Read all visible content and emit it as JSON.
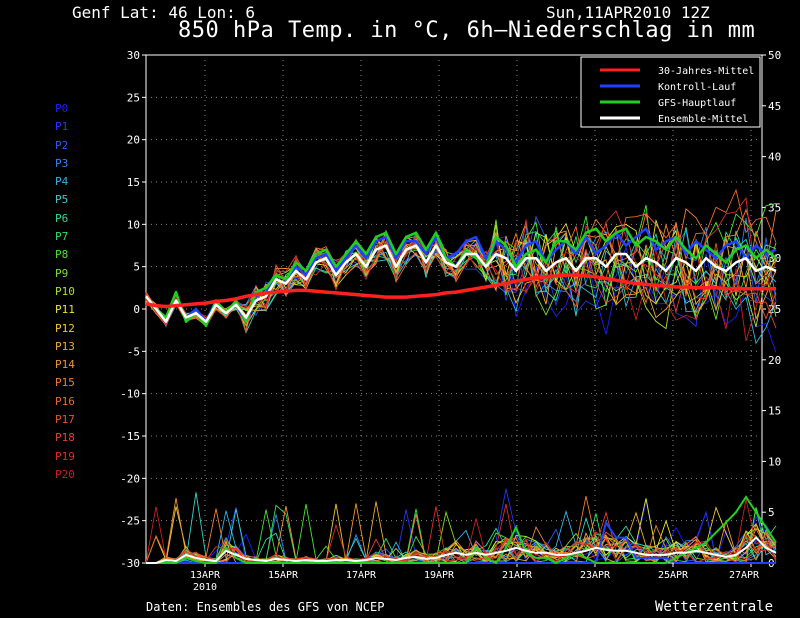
{
  "header": {
    "location": "Genf  Lat: 46 Lon: 6",
    "datetime": "Sun,11APR2010 12Z",
    "title": "850 hPa Temp. in °C, 6h–Niederschlag in mm"
  },
  "footer": {
    "credit": "Daten: Ensembles des GFS von NCEP",
    "brand": "Wetterzentrale"
  },
  "members": [
    {
      "label": "P0",
      "color": "#1c1cff"
    },
    {
      "label": "P1",
      "color": "#2638f0"
    },
    {
      "label": "P2",
      "color": "#2a5cf2"
    },
    {
      "label": "P3",
      "color": "#2f86f0"
    },
    {
      "label": "P4",
      "color": "#32b4e8"
    },
    {
      "label": "P5",
      "color": "#34d2c8"
    },
    {
      "label": "P6",
      "color": "#30d89a"
    },
    {
      "label": "P7",
      "color": "#2ede62"
    },
    {
      "label": "P8",
      "color": "#48e038"
    },
    {
      "label": "P9",
      "color": "#7ae02a"
    },
    {
      "label": "P10",
      "color": "#aee02a"
    },
    {
      "label": "P11",
      "color": "#e6e62a"
    },
    {
      "label": "P12",
      "color": "#f0c832"
    },
    {
      "label": "P13",
      "color": "#f0aa32"
    },
    {
      "label": "P14",
      "color": "#f29432"
    },
    {
      "label": "P15",
      "color": "#f27e30"
    },
    {
      "label": "P16",
      "color": "#f0662e"
    },
    {
      "label": "P17",
      "color": "#e8542c"
    },
    {
      "label": "P18",
      "color": "#e2422a"
    },
    {
      "label": "P19",
      "color": "#d83028"
    },
    {
      "label": "P20",
      "color": "#c82020"
    }
  ],
  "chart_data": {
    "type": "line",
    "x_start": "11APR2010 12Z",
    "x_step_hours": 6,
    "x_tick_labels": [
      "13APR",
      "15APR",
      "17APR",
      "19APR",
      "21APR",
      "23APR",
      "25APR",
      "27APR"
    ],
    "x_tick_sublabel": "2010",
    "y_left_label": "850 hPa Temp. (°C)",
    "y_left_range": [
      -30,
      30
    ],
    "y_left_ticks": [
      30,
      25,
      20,
      15,
      10,
      5,
      0,
      -5,
      -10,
      -15,
      -20,
      -25,
      -30
    ],
    "y_right_label": "6h-Niederschlag (mm)",
    "y_right_range": [
      0,
      50
    ],
    "y_right_ticks": [
      50,
      45,
      40,
      35,
      30,
      25,
      20,
      15,
      10,
      5,
      0
    ],
    "grid": true,
    "legend_position": "top-right",
    "legend": [
      {
        "name": "30-Jahres-Mittel",
        "color": "#ff2020"
      },
      {
        "name": "Kontroll-Lauf",
        "color": "#2040ff"
      },
      {
        "name": "GFS-Hauptlauf",
        "color": "#20d020"
      },
      {
        "name": "Ensemble-Mittel",
        "color": "#ffffff"
      }
    ],
    "series": [
      {
        "name": "30-Jahres-Mittel",
        "color": "#ff2020",
        "values": [
          0.6,
          0.4,
          0.3,
          0.4,
          0.5,
          0.6,
          0.7,
          0.9,
          1.0,
          1.2,
          1.5,
          1.7,
          1.9,
          2.0,
          2.1,
          2.2,
          2.2,
          2.1,
          2.0,
          1.9,
          1.8,
          1.7,
          1.6,
          1.5,
          1.4,
          1.4,
          1.4,
          1.5,
          1.6,
          1.7,
          1.9,
          2.0,
          2.2,
          2.4,
          2.6,
          2.8,
          3.0,
          3.3,
          3.5,
          3.7,
          3.8,
          3.9,
          4.0,
          4.0,
          3.9,
          3.8,
          3.6,
          3.4,
          3.2,
          3.0,
          2.9,
          2.8,
          2.7,
          2.6,
          2.6,
          2.5,
          2.5,
          2.5,
          2.4,
          2.4,
          2.4,
          2.4,
          2.4,
          2.4
        ]
      },
      {
        "name": "Kontroll-Lauf",
        "color": "#2040ff",
        "values": [
          1.5,
          0.0,
          -1.0,
          1.0,
          -1.0,
          0.0,
          -1.5,
          1.0,
          -0.5,
          0.5,
          -1.5,
          1.5,
          2.0,
          4.0,
          3.5,
          5.0,
          4.0,
          6.0,
          6.5,
          4.5,
          6.0,
          7.5,
          6.0,
          8.0,
          8.5,
          6.0,
          8.0,
          8.0,
          6.5,
          8.5,
          6.0,
          6.5,
          8.0,
          8.5,
          6.0,
          8.0,
          7.0,
          5.5,
          7.5,
          8.0,
          5.5,
          7.0,
          8.0,
          6.5,
          8.5,
          6.5,
          7.5,
          9.0,
          7.5,
          8.5,
          9.5,
          7.0,
          8.0,
          8.5,
          6.5,
          8.0,
          7.0,
          6.0,
          7.5,
          8.0,
          6.0,
          7.5,
          6.5,
          7.0
        ]
      },
      {
        "name": "GFS-Hauptlauf",
        "color": "#20d020",
        "values": [
          1.5,
          0.0,
          -1.0,
          2.0,
          -1.5,
          -0.5,
          -2.0,
          1.0,
          -0.5,
          1.0,
          -1.5,
          2.0,
          2.5,
          4.0,
          3.5,
          5.5,
          4.5,
          6.5,
          7.0,
          5.0,
          6.5,
          8.0,
          6.5,
          8.5,
          9.0,
          6.5,
          8.5,
          9.0,
          7.0,
          9.0,
          6.0,
          5.0,
          7.0,
          6.0,
          5.0,
          8.5,
          7.5,
          5.0,
          6.5,
          7.0,
          5.5,
          8.0,
          8.0,
          7.0,
          9.0,
          9.5,
          8.0,
          9.0,
          9.5,
          7.5,
          8.5,
          8.0,
          7.0,
          8.5,
          7.0,
          6.0,
          7.5,
          6.5,
          5.5,
          7.0,
          7.5,
          6.0,
          7.0,
          6.0
        ]
      },
      {
        "name": "Ensemble-Mittel",
        "color": "#ffffff",
        "values": [
          1.5,
          0.0,
          -1.5,
          1.0,
          -1.0,
          -0.5,
          -1.5,
          0.5,
          -0.5,
          0.5,
          -1.0,
          1.0,
          1.5,
          3.5,
          3.0,
          4.5,
          3.5,
          5.5,
          6.0,
          4.0,
          5.5,
          6.5,
          5.0,
          7.0,
          7.5,
          5.0,
          7.0,
          7.5,
          5.5,
          7.5,
          5.5,
          5.0,
          6.5,
          6.5,
          5.0,
          6.5,
          6.0,
          4.5,
          6.0,
          6.0,
          4.5,
          5.5,
          6.0,
          4.5,
          6.0,
          6.0,
          5.0,
          6.5,
          6.5,
          5.0,
          6.0,
          5.5,
          4.5,
          6.0,
          5.5,
          4.5,
          6.0,
          5.0,
          4.5,
          5.5,
          6.0,
          4.5,
          5.0,
          4.5
        ]
      }
    ],
    "precip_series": [
      {
        "name": "Kontroll-Lauf",
        "color": "#2040ff",
        "values": [
          0,
          0,
          0,
          0,
          0,
          0,
          0,
          0,
          0,
          0,
          0,
          0,
          0,
          0,
          0,
          0,
          0,
          0,
          0,
          0,
          0,
          0,
          0,
          0,
          0,
          0,
          0,
          0,
          0,
          0,
          0,
          0,
          0,
          0,
          0,
          0,
          0,
          0,
          0,
          0,
          0,
          0,
          0,
          0,
          0,
          0,
          4,
          2.5,
          2.5,
          0.5,
          0.5,
          0.5,
          0.5,
          0,
          0,
          0,
          0,
          0,
          0,
          0,
          0,
          0,
          0,
          0
        ]
      },
      {
        "name": "GFS-Hauptlauf",
        "color": "#20d020",
        "values": [
          0,
          0,
          0,
          0,
          0.5,
          0.2,
          0,
          0,
          1.5,
          0.5,
          0,
          0,
          0,
          0,
          0,
          0,
          0,
          0,
          0,
          0,
          0,
          0,
          0,
          0,
          0,
          0,
          0,
          0,
          0,
          0,
          0,
          0,
          0,
          1.5,
          0.5,
          0,
          1.5,
          3.5,
          1,
          0.5,
          0.5,
          0,
          0.5,
          1,
          0.5,
          0,
          0,
          0,
          0,
          0,
          0,
          0,
          0,
          0.5,
          1,
          1.5,
          2,
          3,
          4,
          5,
          6.5,
          5,
          3.5,
          2
        ]
      },
      {
        "name": "Ensemble-Mittel",
        "color": "#ffffff",
        "values": [
          0,
          0,
          0.3,
          0.2,
          0.8,
          0.5,
          0.3,
          0.2,
          1.2,
          0.8,
          0.4,
          0.3,
          0.2,
          0.4,
          0.3,
          0.2,
          0.3,
          0.2,
          0.2,
          0.3,
          0.3,
          0.2,
          0.3,
          0.5,
          0.4,
          0.3,
          0.5,
          0.6,
          0.4,
          0.5,
          0.8,
          1.0,
          0.8,
          1.0,
          0.8,
          1.0,
          1.2,
          1.5,
          1.2,
          1.0,
          1.0,
          0.8,
          0.8,
          1.0,
          1.2,
          1.5,
          1.3,
          1.2,
          1.2,
          1.0,
          0.8,
          0.8,
          0.8,
          1.0,
          1.0,
          1.2,
          1.0,
          0.8,
          0.6,
          0.8,
          1.5,
          2.5,
          1.5,
          1.0
        ]
      }
    ]
  }
}
